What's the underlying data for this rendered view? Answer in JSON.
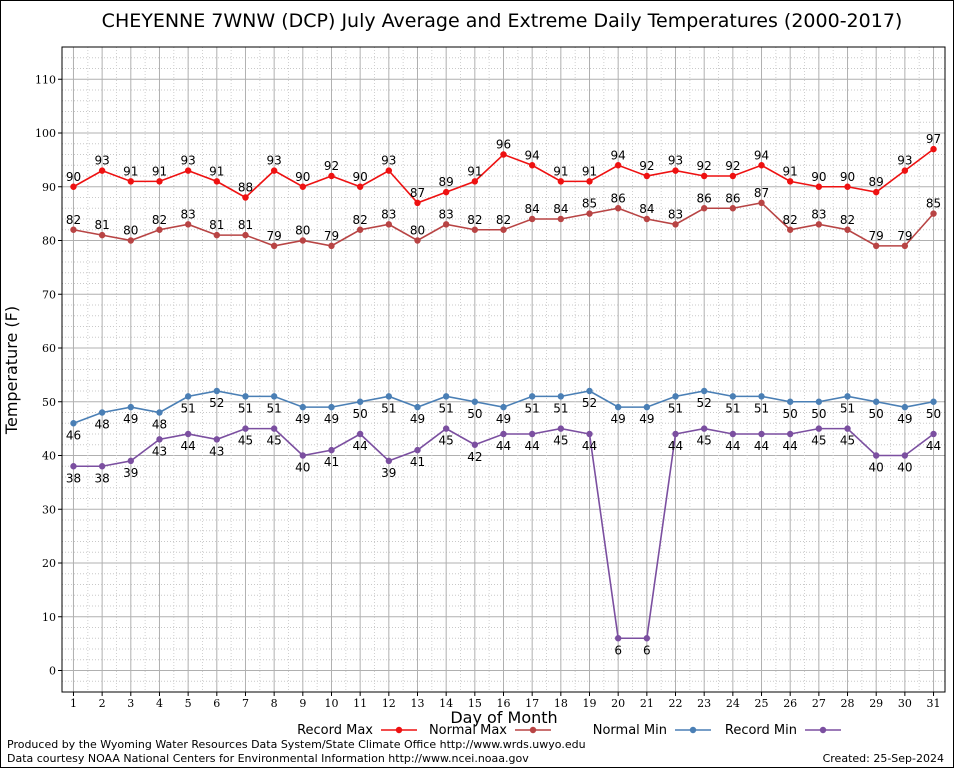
{
  "chart_data": {
    "type": "line",
    "title": "CHEYENNE 7WNW (DCP) July Average and Extreme Daily Temperatures (2000-2017)",
    "xlabel": "Day of Month",
    "ylabel": "Temperature (F)",
    "x": [
      1,
      2,
      3,
      4,
      5,
      6,
      7,
      8,
      9,
      10,
      11,
      12,
      13,
      14,
      15,
      16,
      17,
      18,
      19,
      20,
      21,
      22,
      23,
      24,
      25,
      26,
      27,
      28,
      29,
      30,
      31
    ],
    "xlim": [
      0.6,
      31.4
    ],
    "ylim": [
      -4,
      116
    ],
    "yticks": [
      0,
      10,
      20,
      30,
      40,
      50,
      60,
      70,
      80,
      90,
      100,
      110
    ],
    "grid": true,
    "legend_position": "bottom",
    "series": [
      {
        "name": "Record Max",
        "color": "#ee1111",
        "label_pos": "above",
        "values": [
          90,
          93,
          91,
          91,
          93,
          91,
          88,
          93,
          90,
          92,
          90,
          93,
          87,
          89,
          91,
          96,
          94,
          91,
          91,
          94,
          92,
          93,
          92,
          92,
          94,
          91,
          90,
          90,
          89,
          93,
          97
        ]
      },
      {
        "name": "Normal Max",
        "color": "#b84444",
        "label_pos": "above",
        "values": [
          82,
          81,
          80,
          82,
          83,
          81,
          81,
          79,
          80,
          79,
          82,
          83,
          80,
          83,
          82,
          82,
          84,
          84,
          85,
          86,
          84,
          83,
          86,
          86,
          87,
          82,
          83,
          82,
          79,
          79,
          85
        ]
      },
      {
        "name": "Normal Min",
        "color": "#4a7fb5",
        "label_pos": "below",
        "values": [
          46,
          48,
          49,
          48,
          51,
          52,
          51,
          51,
          49,
          49,
          50,
          51,
          49,
          51,
          50,
          49,
          51,
          51,
          52,
          49,
          49,
          51,
          52,
          51,
          51,
          50,
          50,
          51,
          50,
          49,
          50
        ]
      },
      {
        "name": "Record Min",
        "color": "#7b4fa0",
        "label_pos": "below",
        "values": [
          38,
          38,
          39,
          43,
          44,
          43,
          45,
          45,
          40,
          41,
          44,
          39,
          41,
          45,
          42,
          44,
          44,
          45,
          44,
          6,
          6,
          44,
          45,
          44,
          44,
          44,
          45,
          45,
          40,
          40,
          44
        ]
      }
    ]
  },
  "footer": {
    "produced_by": "Produced by the Wyoming Water Resources Data System/State Climate Office http://www.wrds.uwyo.edu",
    "courtesy": "Data courtesy NOAA National Centers for Environmental Information http://www.ncei.noaa.gov",
    "created": "Created:  25-Sep-2024"
  }
}
